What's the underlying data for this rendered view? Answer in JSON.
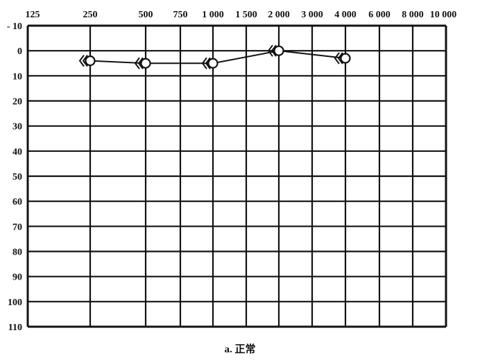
{
  "chart_data": {
    "type": "line",
    "caption": "a. 正常",
    "x_ticks": [
      "125",
      "250",
      "500",
      "750",
      "1 000",
      "1 500",
      "2 000",
      "3 000",
      "4 000",
      "6 000",
      "8 000",
      "10 000"
    ],
    "y_ticks": [
      "- 10",
      "0",
      "10",
      "20",
      "30",
      "40",
      "50",
      "60",
      "70",
      "80",
      "90",
      "100",
      "110"
    ],
    "ylim": [
      -10,
      110
    ],
    "y_inverted": true,
    "grid": true,
    "series": [
      {
        "marker": "circle-with-left-bracket",
        "color": "#111111",
        "points": [
          {
            "x": "250",
            "y": 4
          },
          {
            "x": "500",
            "y": 5
          },
          {
            "x": "1 000",
            "y": 5
          },
          {
            "x": "2 000",
            "y": 0
          },
          {
            "x": "4 000",
            "y": 3
          }
        ]
      }
    ]
  }
}
